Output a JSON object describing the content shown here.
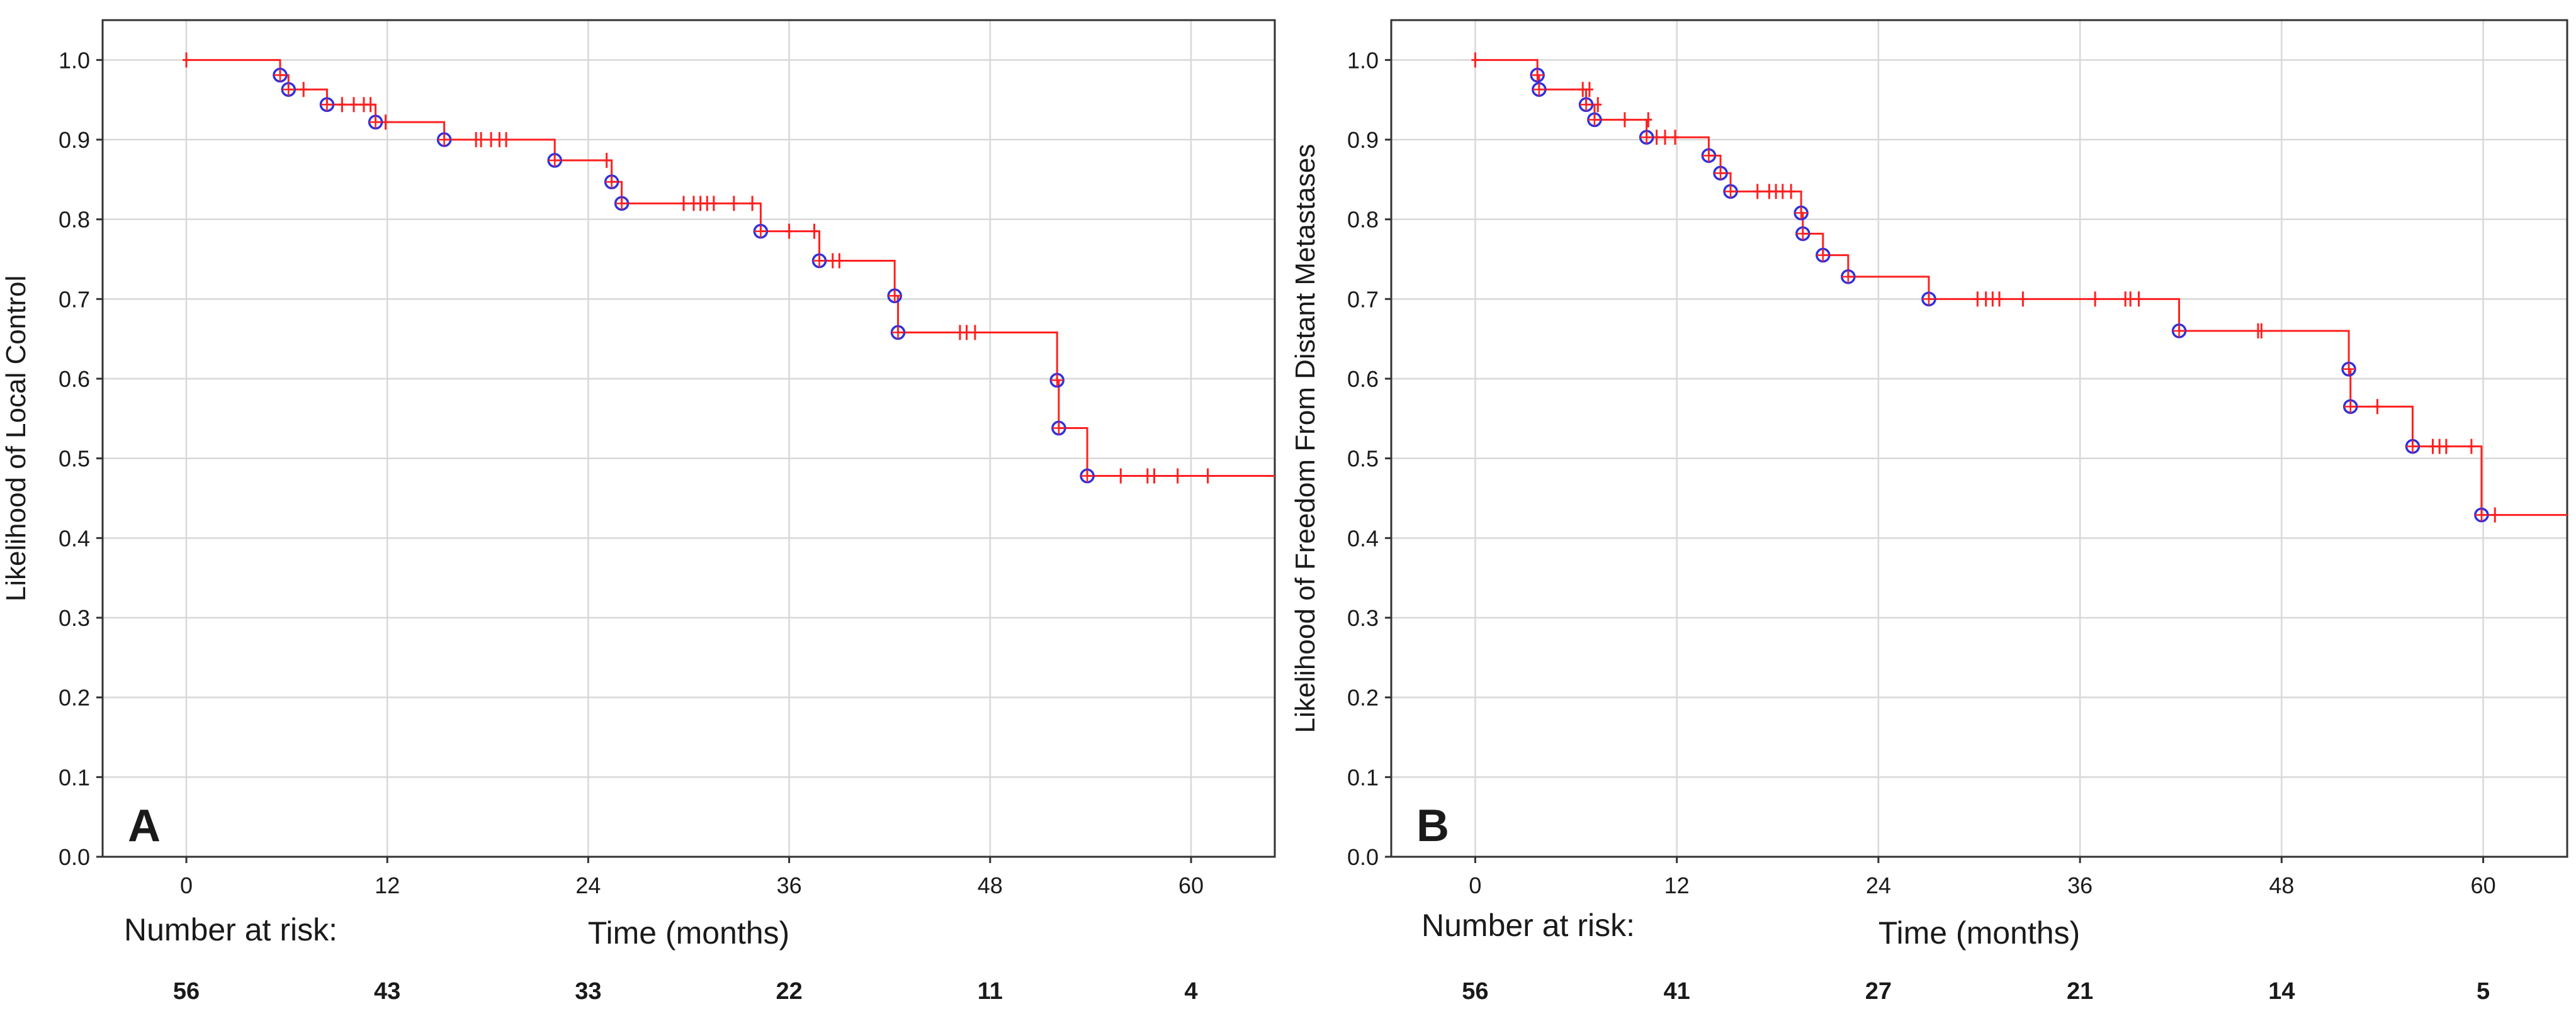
{
  "chart_data": [
    {
      "type": "line",
      "panel_label": "A",
      "xlabel": "Time (months)",
      "ylabel": "Likelihood of Local Control",
      "xlim": [
        -5,
        65
      ],
      "ylim": [
        0,
        1.05
      ],
      "x_ticks": [
        0,
        12,
        24,
        36,
        48,
        60
      ],
      "x_tick_labels": [
        "0",
        "12",
        "24",
        "36",
        "48",
        "60"
      ],
      "y_ticks": [
        0,
        0.1,
        0.2,
        0.3,
        0.4,
        0.5,
        0.6,
        0.7,
        0.8,
        0.9,
        1.0
      ],
      "y_tick_labels": [
        "0.0",
        "0.1",
        "0.2",
        "0.3",
        "0.4",
        "0.5",
        "0.6",
        "0.7",
        "0.8",
        "0.9",
        "1.0"
      ],
      "grid": true,
      "colors": {
        "curve": "#ff2020",
        "event_marker": "#3030dd",
        "grid": "#d8d8d8"
      },
      "x_end": 65,
      "curve_steps": [
        {
          "x": 0,
          "y": 1.0
        },
        {
          "x": 5.6,
          "y": 0.981
        },
        {
          "x": 6.1,
          "y": 0.963
        },
        {
          "x": 8.4,
          "y": 0.944
        },
        {
          "x": 11.3,
          "y": 0.922
        },
        {
          "x": 15.4,
          "y": 0.9
        },
        {
          "x": 22.0,
          "y": 0.874
        },
        {
          "x": 25.4,
          "y": 0.847
        },
        {
          "x": 26.0,
          "y": 0.82
        },
        {
          "x": 34.3,
          "y": 0.785
        },
        {
          "x": 37.8,
          "y": 0.748
        },
        {
          "x": 42.3,
          "y": 0.704
        },
        {
          "x": 42.5,
          "y": 0.658
        },
        {
          "x": 52.0,
          "y": 0.598
        },
        {
          "x": 52.1,
          "y": 0.538
        },
        {
          "x": 53.8,
          "y": 0.478
        }
      ],
      "events": [
        {
          "x": 5.6,
          "y": 0.981
        },
        {
          "x": 6.1,
          "y": 0.963
        },
        {
          "x": 8.4,
          "y": 0.944
        },
        {
          "x": 11.3,
          "y": 0.922
        },
        {
          "x": 15.4,
          "y": 0.9
        },
        {
          "x": 22.0,
          "y": 0.874
        },
        {
          "x": 25.4,
          "y": 0.847
        },
        {
          "x": 26.0,
          "y": 0.82
        },
        {
          "x": 34.3,
          "y": 0.785
        },
        {
          "x": 37.8,
          "y": 0.748
        },
        {
          "x": 42.3,
          "y": 0.704
        },
        {
          "x": 42.5,
          "y": 0.658
        },
        {
          "x": 52.0,
          "y": 0.598
        },
        {
          "x": 52.1,
          "y": 0.538
        },
        {
          "x": 53.8,
          "y": 0.478
        }
      ],
      "censored": [
        {
          "x": 0,
          "y": 1.0
        },
        {
          "x": 7.0,
          "y": 0.963
        },
        {
          "x": 9.3,
          "y": 0.944
        },
        {
          "x": 10.0,
          "y": 0.944
        },
        {
          "x": 10.6,
          "y": 0.944
        },
        {
          "x": 11.0,
          "y": 0.944
        },
        {
          "x": 11.9,
          "y": 0.922
        },
        {
          "x": 17.3,
          "y": 0.9
        },
        {
          "x": 17.6,
          "y": 0.9
        },
        {
          "x": 18.2,
          "y": 0.9
        },
        {
          "x": 18.7,
          "y": 0.9
        },
        {
          "x": 19.1,
          "y": 0.9
        },
        {
          "x": 25.1,
          "y": 0.874
        },
        {
          "x": 29.7,
          "y": 0.82
        },
        {
          "x": 30.3,
          "y": 0.82
        },
        {
          "x": 30.7,
          "y": 0.82
        },
        {
          "x": 31.1,
          "y": 0.82
        },
        {
          "x": 31.5,
          "y": 0.82
        },
        {
          "x": 32.7,
          "y": 0.82
        },
        {
          "x": 33.8,
          "y": 0.82
        },
        {
          "x": 36.0,
          "y": 0.785
        },
        {
          "x": 37.5,
          "y": 0.785
        },
        {
          "x": 38.6,
          "y": 0.748
        },
        {
          "x": 39.0,
          "y": 0.748
        },
        {
          "x": 46.2,
          "y": 0.658
        },
        {
          "x": 46.6,
          "y": 0.658
        },
        {
          "x": 47.1,
          "y": 0.658
        },
        {
          "x": 55.8,
          "y": 0.478
        },
        {
          "x": 57.4,
          "y": 0.478
        },
        {
          "x": 57.8,
          "y": 0.478
        },
        {
          "x": 59.2,
          "y": 0.478
        },
        {
          "x": 61.0,
          "y": 0.478
        }
      ],
      "risk_table": {
        "title": "Number at risk:",
        "times": [
          0,
          12,
          24,
          36,
          48,
          60
        ],
        "counts": [
          "56",
          "43",
          "33",
          "22",
          "11",
          "4"
        ]
      }
    },
    {
      "type": "line",
      "panel_label": "B",
      "xlabel": "Time (months)",
      "ylabel": "Likelihood of Freedom From Distant Metastases",
      "xlim": [
        -5,
        65
      ],
      "ylim": [
        0,
        1.05
      ],
      "x_ticks": [
        0,
        12,
        24,
        36,
        48,
        60
      ],
      "x_tick_labels": [
        "0",
        "12",
        "24",
        "36",
        "48",
        "60"
      ],
      "y_ticks": [
        0,
        0.1,
        0.2,
        0.3,
        0.4,
        0.5,
        0.6,
        0.7,
        0.8,
        0.9,
        1.0
      ],
      "y_tick_labels": [
        "0.0",
        "0.1",
        "0.2",
        "0.3",
        "0.4",
        "0.5",
        "0.6",
        "0.7",
        "0.8",
        "0.9",
        "1.0"
      ],
      "grid": true,
      "colors": {
        "curve": "#ff2020",
        "event_marker": "#3030dd",
        "grid": "#d8d8d8"
      },
      "x_end": 65,
      "curve_steps": [
        {
          "x": 0,
          "y": 1.0
        },
        {
          "x": 3.7,
          "y": 0.981
        },
        {
          "x": 3.8,
          "y": 0.963
        },
        {
          "x": 6.6,
          "y": 0.944
        },
        {
          "x": 7.1,
          "y": 0.925
        },
        {
          "x": 10.2,
          "y": 0.903
        },
        {
          "x": 13.9,
          "y": 0.88
        },
        {
          "x": 14.6,
          "y": 0.858
        },
        {
          "x": 15.2,
          "y": 0.835
        },
        {
          "x": 19.4,
          "y": 0.808
        },
        {
          "x": 19.5,
          "y": 0.782
        },
        {
          "x": 20.7,
          "y": 0.755
        },
        {
          "x": 22.2,
          "y": 0.728
        },
        {
          "x": 27.0,
          "y": 0.7
        },
        {
          "x": 41.9,
          "y": 0.66
        },
        {
          "x": 52.0,
          "y": 0.612
        },
        {
          "x": 52.1,
          "y": 0.565
        },
        {
          "x": 55.8,
          "y": 0.515
        },
        {
          "x": 59.9,
          "y": 0.429
        }
      ],
      "events": [
        {
          "x": 3.7,
          "y": 0.981
        },
        {
          "x": 3.8,
          "y": 0.963
        },
        {
          "x": 6.6,
          "y": 0.944
        },
        {
          "x": 7.1,
          "y": 0.925
        },
        {
          "x": 10.2,
          "y": 0.903
        },
        {
          "x": 13.9,
          "y": 0.88
        },
        {
          "x": 14.6,
          "y": 0.858
        },
        {
          "x": 15.2,
          "y": 0.835
        },
        {
          "x": 19.4,
          "y": 0.808
        },
        {
          "x": 19.5,
          "y": 0.782
        },
        {
          "x": 20.7,
          "y": 0.755
        },
        {
          "x": 22.2,
          "y": 0.728
        },
        {
          "x": 27.0,
          "y": 0.7
        },
        {
          "x": 41.9,
          "y": 0.66
        },
        {
          "x": 52.0,
          "y": 0.612
        },
        {
          "x": 52.1,
          "y": 0.565
        },
        {
          "x": 55.8,
          "y": 0.515
        },
        {
          "x": 59.9,
          "y": 0.429
        }
      ],
      "censored": [
        {
          "x": 0,
          "y": 1.0
        },
        {
          "x": 6.4,
          "y": 0.963
        },
        {
          "x": 6.8,
          "y": 0.963
        },
        {
          "x": 7.3,
          "y": 0.944
        },
        {
          "x": 8.9,
          "y": 0.925
        },
        {
          "x": 10.3,
          "y": 0.925
        },
        {
          "x": 10.8,
          "y": 0.903
        },
        {
          "x": 11.3,
          "y": 0.903
        },
        {
          "x": 11.9,
          "y": 0.903
        },
        {
          "x": 16.8,
          "y": 0.835
        },
        {
          "x": 17.5,
          "y": 0.835
        },
        {
          "x": 17.9,
          "y": 0.835
        },
        {
          "x": 18.3,
          "y": 0.835
        },
        {
          "x": 18.8,
          "y": 0.835
        },
        {
          "x": 29.9,
          "y": 0.7
        },
        {
          "x": 30.4,
          "y": 0.7
        },
        {
          "x": 30.8,
          "y": 0.7
        },
        {
          "x": 31.2,
          "y": 0.7
        },
        {
          "x": 32.6,
          "y": 0.7
        },
        {
          "x": 36.9,
          "y": 0.7
        },
        {
          "x": 38.7,
          "y": 0.7
        },
        {
          "x": 39.0,
          "y": 0.7
        },
        {
          "x": 39.5,
          "y": 0.7
        },
        {
          "x": 46.6,
          "y": 0.66
        },
        {
          "x": 46.8,
          "y": 0.66
        },
        {
          "x": 53.7,
          "y": 0.565
        },
        {
          "x": 57.0,
          "y": 0.515
        },
        {
          "x": 57.4,
          "y": 0.515
        },
        {
          "x": 57.8,
          "y": 0.515
        },
        {
          "x": 59.3,
          "y": 0.515
        },
        {
          "x": 60.7,
          "y": 0.429
        }
      ],
      "risk_table": {
        "title": "Number at risk:",
        "times": [
          0,
          12,
          24,
          36,
          48,
          60
        ],
        "counts": [
          "56",
          "41",
          "27",
          "21",
          "14",
          "5"
        ]
      }
    }
  ]
}
